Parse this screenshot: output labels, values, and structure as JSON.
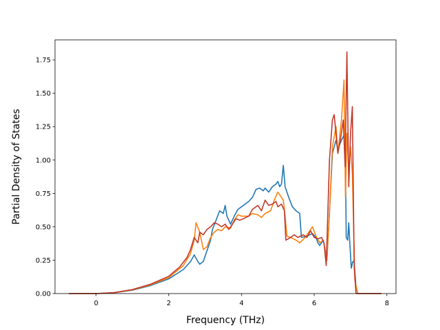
{
  "chart_data": {
    "type": "line",
    "title": "",
    "xlabel": "Frequency (THz)",
    "ylabel": "Partial Density of States",
    "xlim": [
      -1.13,
      8.25
    ],
    "ylim": [
      0,
      1.9
    ],
    "xticks": [
      0,
      2,
      4,
      6,
      8
    ],
    "xtick_labels": [
      "0",
      "2",
      "4",
      "6",
      "8"
    ],
    "yticks": [
      0,
      0.25,
      0.5,
      0.75,
      1.0,
      1.25,
      1.5,
      1.75
    ],
    "ytick_labels": [
      "0.00",
      "0.25",
      "0.50",
      "0.75",
      "1.00",
      "1.25",
      "1.50",
      "1.75"
    ],
    "grid": false,
    "legend": "none",
    "series": [
      {
        "color": "#1f77b4",
        "points": [
          [
            -0.75,
            0
          ],
          [
            0,
            0
          ],
          [
            0.5,
            0.006
          ],
          [
            1,
            0.025
          ],
          [
            1.5,
            0.06
          ],
          [
            2,
            0.11
          ],
          [
            2.4,
            0.18
          ],
          [
            2.6,
            0.24
          ],
          [
            2.7,
            0.29
          ],
          [
            2.8,
            0.24
          ],
          [
            2.85,
            0.22
          ],
          [
            2.95,
            0.24
          ],
          [
            3.05,
            0.32
          ],
          [
            3.15,
            0.4
          ],
          [
            3.2,
            0.48
          ],
          [
            3.3,
            0.55
          ],
          [
            3.4,
            0.62
          ],
          [
            3.5,
            0.6
          ],
          [
            3.55,
            0.66
          ],
          [
            3.6,
            0.58
          ],
          [
            3.7,
            0.52
          ],
          [
            3.8,
            0.58
          ],
          [
            3.9,
            0.63
          ],
          [
            4.0,
            0.65
          ],
          [
            4.1,
            0.67
          ],
          [
            4.2,
            0.69
          ],
          [
            4.3,
            0.72
          ],
          [
            4.4,
            0.78
          ],
          [
            4.5,
            0.79
          ],
          [
            4.6,
            0.77
          ],
          [
            4.65,
            0.79
          ],
          [
            4.75,
            0.76
          ],
          [
            4.85,
            0.8
          ],
          [
            4.95,
            0.82
          ],
          [
            5.0,
            0.84
          ],
          [
            5.05,
            0.8
          ],
          [
            5.1,
            0.82
          ],
          [
            5.15,
            0.96
          ],
          [
            5.2,
            0.8
          ],
          [
            5.3,
            0.72
          ],
          [
            5.4,
            0.65
          ],
          [
            5.5,
            0.62
          ],
          [
            5.6,
            0.6
          ],
          [
            5.65,
            0.42
          ],
          [
            5.8,
            0.43
          ],
          [
            5.95,
            0.45
          ],
          [
            6.05,
            0.42
          ],
          [
            6.1,
            0.38
          ],
          [
            6.15,
            0.36
          ],
          [
            6.25,
            0.4
          ],
          [
            6.3,
            0.33
          ],
          [
            6.35,
            0.25
          ],
          [
            6.42,
            0.6
          ],
          [
            6.5,
            1.05
          ],
          [
            6.6,
            1.15
          ],
          [
            6.65,
            1.08
          ],
          [
            6.75,
            1.15
          ],
          [
            6.85,
            1.2
          ],
          [
            6.88,
            0.42
          ],
          [
            6.92,
            0.4
          ],
          [
            6.95,
            0.53
          ],
          [
            6.98,
            0.38
          ],
          [
            7.02,
            0.19
          ],
          [
            7.06,
            0.24
          ],
          [
            7.1,
            0.24
          ],
          [
            7.15,
            0.05
          ],
          [
            7.2,
            0
          ],
          [
            7.85,
            0
          ]
        ]
      },
      {
        "color": "#ff7f0e",
        "points": [
          [
            -0.75,
            0
          ],
          [
            0,
            0
          ],
          [
            0.5,
            0.006
          ],
          [
            1,
            0.028
          ],
          [
            1.5,
            0.066
          ],
          [
            2,
            0.12
          ],
          [
            2.4,
            0.21
          ],
          [
            2.6,
            0.3
          ],
          [
            2.7,
            0.4
          ],
          [
            2.75,
            0.53
          ],
          [
            2.85,
            0.46
          ],
          [
            2.95,
            0.33
          ],
          [
            3.05,
            0.35
          ],
          [
            3.15,
            0.42
          ],
          [
            3.25,
            0.46
          ],
          [
            3.35,
            0.48
          ],
          [
            3.45,
            0.47
          ],
          [
            3.55,
            0.5
          ],
          [
            3.7,
            0.49
          ],
          [
            3.8,
            0.55
          ],
          [
            3.9,
            0.59
          ],
          [
            4.0,
            0.58
          ],
          [
            4.2,
            0.58
          ],
          [
            4.3,
            0.6
          ],
          [
            4.45,
            0.59
          ],
          [
            4.55,
            0.57
          ],
          [
            4.65,
            0.6
          ],
          [
            4.8,
            0.62
          ],
          [
            4.9,
            0.7
          ],
          [
            5.0,
            0.76
          ],
          [
            5.05,
            0.74
          ],
          [
            5.15,
            0.7
          ],
          [
            5.2,
            0.58
          ],
          [
            5.25,
            0.43
          ],
          [
            5.35,
            0.42
          ],
          [
            5.5,
            0.4
          ],
          [
            5.6,
            0.38
          ],
          [
            5.75,
            0.42
          ],
          [
            5.85,
            0.46
          ],
          [
            5.95,
            0.5
          ],
          [
            6.05,
            0.43
          ],
          [
            6.15,
            0.38
          ],
          [
            6.25,
            0.4
          ],
          [
            6.3,
            0.33
          ],
          [
            6.35,
            0.25
          ],
          [
            6.42,
            0.6
          ],
          [
            6.5,
            1.1
          ],
          [
            6.6,
            1.25
          ],
          [
            6.65,
            1.05
          ],
          [
            6.75,
            1.3
          ],
          [
            6.82,
            1.6
          ],
          [
            6.86,
            0.72
          ],
          [
            6.9,
            1.2
          ],
          [
            6.95,
            0.9
          ],
          [
            7.0,
            1.1
          ],
          [
            7.05,
            0.9
          ],
          [
            7.12,
            0.1
          ],
          [
            7.2,
            0
          ],
          [
            7.85,
            0
          ]
        ]
      },
      {
        "color": "#c0392b",
        "points": [
          [
            -0.75,
            0
          ],
          [
            0,
            0
          ],
          [
            0.5,
            0.007
          ],
          [
            1,
            0.03
          ],
          [
            1.5,
            0.07
          ],
          [
            2,
            0.13
          ],
          [
            2.3,
            0.2
          ],
          [
            2.5,
            0.27
          ],
          [
            2.6,
            0.33
          ],
          [
            2.7,
            0.42
          ],
          [
            2.8,
            0.38
          ],
          [
            2.85,
            0.46
          ],
          [
            2.95,
            0.44
          ],
          [
            3.05,
            0.48
          ],
          [
            3.15,
            0.5
          ],
          [
            3.25,
            0.53
          ],
          [
            3.35,
            0.52
          ],
          [
            3.45,
            0.5
          ],
          [
            3.55,
            0.52
          ],
          [
            3.65,
            0.48
          ],
          [
            3.75,
            0.52
          ],
          [
            3.85,
            0.56
          ],
          [
            3.95,
            0.55
          ],
          [
            4.05,
            0.56
          ],
          [
            4.2,
            0.58
          ],
          [
            4.3,
            0.63
          ],
          [
            4.45,
            0.66
          ],
          [
            4.55,
            0.62
          ],
          [
            4.65,
            0.7
          ],
          [
            4.75,
            0.66
          ],
          [
            4.85,
            0.67
          ],
          [
            4.95,
            0.69
          ],
          [
            5.0,
            0.65
          ],
          [
            5.1,
            0.67
          ],
          [
            5.18,
            0.62
          ],
          [
            5.22,
            0.4
          ],
          [
            5.35,
            0.42
          ],
          [
            5.45,
            0.44
          ],
          [
            5.55,
            0.42
          ],
          [
            5.7,
            0.44
          ],
          [
            5.8,
            0.42
          ],
          [
            5.9,
            0.47
          ],
          [
            6.0,
            0.42
          ],
          [
            6.1,
            0.41
          ],
          [
            6.2,
            0.42
          ],
          [
            6.27,
            0.38
          ],
          [
            6.33,
            0.21
          ],
          [
            6.42,
            1.0
          ],
          [
            6.5,
            1.3
          ],
          [
            6.55,
            1.34
          ],
          [
            6.65,
            1.05
          ],
          [
            6.72,
            1.15
          ],
          [
            6.8,
            1.3
          ],
          [
            6.85,
            0.95
          ],
          [
            6.9,
            1.81
          ],
          [
            6.95,
            0.8
          ],
          [
            7.0,
            1.2
          ],
          [
            7.05,
            1.4
          ],
          [
            7.1,
            0.2
          ],
          [
            7.15,
            0
          ],
          [
            7.85,
            0
          ]
        ]
      }
    ]
  }
}
